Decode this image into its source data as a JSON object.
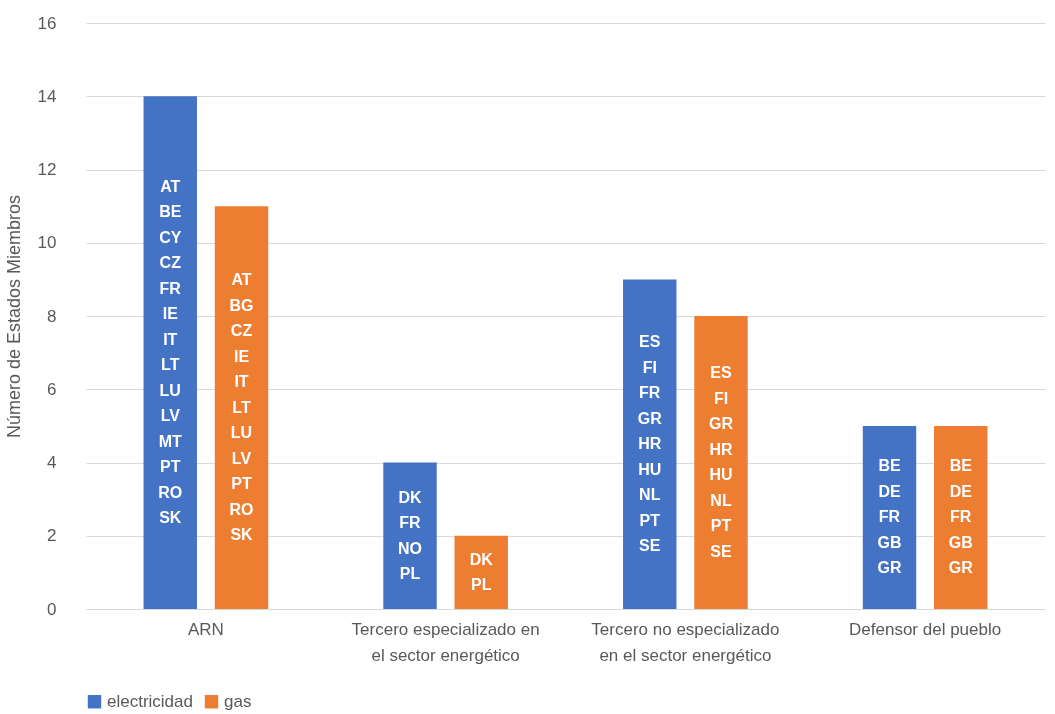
{
  "chart_data": {
    "type": "bar",
    "ylabel": "Número de Estados Miembros",
    "categories": [
      "ARN",
      "Tercero especializado en el sector energético",
      "Tercero no especializado en el sector energético",
      "Defensor del pueblo"
    ],
    "series": [
      {
        "name": "electricidad",
        "color": "#4472c4",
        "values": [
          14,
          4,
          9,
          5
        ],
        "value_labels": [
          "AT\nBE\nCY\nCZ\nFR\nIE\nIT\nLT\nLU\nLV\nMT\nPT\nRO\nSK",
          "DK\nFR\nNO\nPL",
          "ES\nFI\nFR\nGR\nHR\nHU\nNL\nPT\nSE",
          "BE\nDE\nFR\nGB\nGR"
        ]
      },
      {
        "name": "gas",
        "color": "#ed7d31",
        "values": [
          11,
          2,
          8,
          5
        ],
        "value_labels": [
          "AT\nBG\nCZ\nIE\nIT\nLT\nLU\nLV\nPT\nRO\nSK",
          "DK\nPL",
          "ES\nFI\nGR\nHR\nHU\nNL\nPT\nSE",
          "BE\nDE\nFR\nGB\nGR"
        ]
      }
    ],
    "ylim": [
      0,
      16
    ],
    "yticks": [
      0,
      2,
      4,
      6,
      8,
      10,
      12,
      14,
      16
    ],
    "grid": "y",
    "legend": "bottom"
  }
}
